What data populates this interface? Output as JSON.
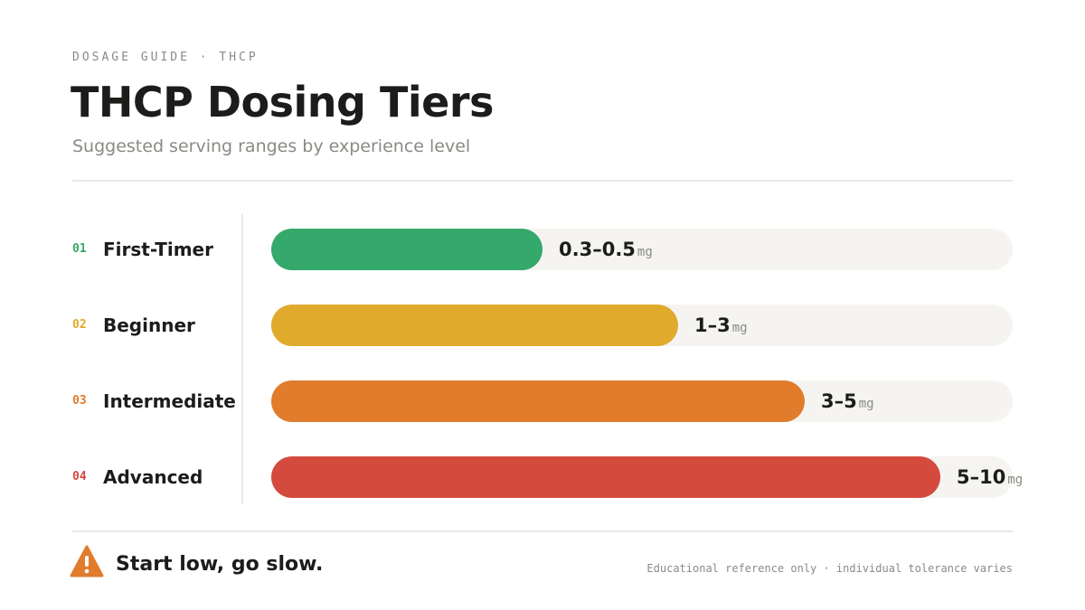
{
  "header": {
    "eyebrow": "DOSAGE GUIDE · THCP",
    "title": "THCP Dosing Tiers",
    "subtitle": "Suggested serving ranges by experience level"
  },
  "tiers": [
    {
      "number": "01",
      "name": "First-Timer",
      "range": "0.3–0.5",
      "unit": "mg"
    },
    {
      "number": "02",
      "name": "Beginner",
      "range": "1–3",
      "unit": "mg"
    },
    {
      "number": "03",
      "name": "Intermediate",
      "range": "3–5",
      "unit": "mg"
    },
    {
      "number": "04",
      "name": "Advanced",
      "range": "5–10",
      "unit": "mg"
    }
  ],
  "footer": {
    "warning": "Start low, go slow.",
    "note": "Educational reference only · individual tolerance varies"
  }
}
